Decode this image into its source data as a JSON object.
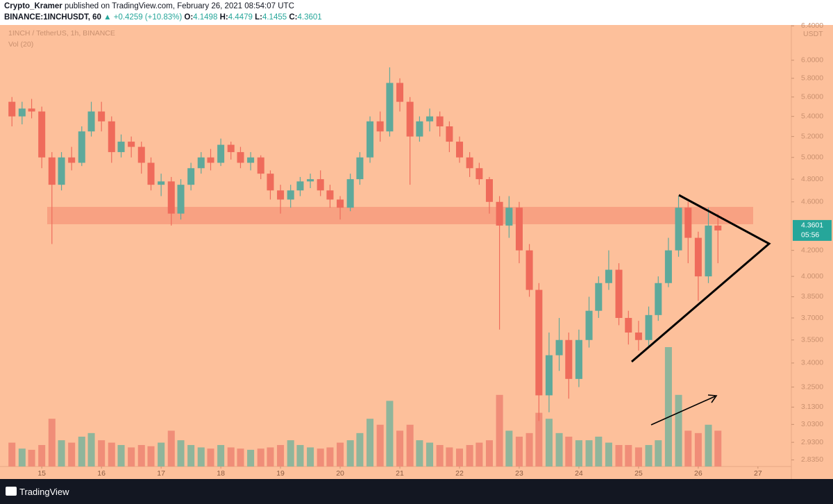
{
  "header": {
    "author": "Crypto_Kramer",
    "published": "published on TradingView.com, February 26, 2021 08:54:07 UTC",
    "symbol": "BINANCE:1INCHUSDT, 60",
    "change": "▲ +0.4259 (+10.83%)",
    "ohlc": [
      {
        "label": "O:",
        "value": "4.1498"
      },
      {
        "label": "H:",
        "value": "4.4479"
      },
      {
        "label": "L:",
        "value": "4.1455"
      },
      {
        "label": "C:",
        "value": "4.3601"
      }
    ]
  },
  "chart_data": {
    "type": "candlestick",
    "title": "1INCH / TetherUS, 1h, BINANCE",
    "indicator": "Vol (20)",
    "x": [
      14.5,
      14.67,
      14.83,
      15,
      15.17,
      15.33,
      15.5,
      15.67,
      15.83,
      16,
      16.17,
      16.33,
      16.5,
      16.67,
      16.83,
      17,
      17.17,
      17.33,
      17.5,
      17.67,
      17.83,
      18,
      18.17,
      18.33,
      18.5,
      18.67,
      18.83,
      19,
      19.17,
      19.33,
      19.5,
      19.67,
      19.83,
      20,
      20.17,
      20.33,
      20.5,
      20.67,
      20.83,
      21,
      21.17,
      21.33,
      21.5,
      21.67,
      21.83,
      22,
      22.17,
      22.33,
      22.5,
      22.67,
      22.83,
      23,
      23.17,
      23.33,
      23.5,
      23.67,
      23.83,
      24,
      24.17,
      24.33,
      24.5,
      24.67,
      24.83,
      25,
      25.17,
      25.33,
      25.5,
      25.67,
      25.83,
      26,
      26.17,
      26.33
    ],
    "open": [
      5.55,
      5.4,
      5.48,
      5.45,
      5.0,
      4.75,
      5.0,
      4.95,
      5.25,
      5.45,
      5.35,
      5.05,
      5.15,
      5.1,
      4.95,
      4.75,
      4.78,
      4.5,
      4.75,
      4.9,
      5.0,
      4.95,
      5.12,
      5.05,
      4.95,
      5.0,
      4.85,
      4.7,
      4.62,
      4.7,
      4.78,
      4.8,
      4.7,
      4.62,
      4.55,
      4.8,
      5.0,
      5.35,
      5.25,
      5.75,
      5.55,
      5.2,
      5.35,
      5.4,
      5.3,
      5.15,
      5.0,
      4.9,
      4.8,
      4.6,
      4.4,
      4.55,
      4.2,
      3.9,
      3.2,
      3.45,
      3.55,
      3.3,
      3.55,
      3.75,
      3.95,
      4.05,
      3.7,
      3.6,
      3.55,
      3.72,
      3.95,
      4.2,
      4.55,
      4.3,
      4.0,
      4.4
    ],
    "high": [
      5.6,
      5.55,
      5.58,
      5.5,
      5.05,
      5.05,
      5.1,
      5.3,
      5.55,
      5.55,
      5.4,
      5.22,
      5.2,
      5.15,
      5.0,
      4.85,
      4.82,
      4.8,
      4.95,
      5.05,
      5.08,
      5.18,
      5.15,
      5.1,
      5.05,
      5.02,
      4.88,
      4.75,
      4.75,
      4.82,
      4.85,
      4.88,
      4.75,
      4.65,
      4.85,
      5.05,
      5.4,
      5.45,
      5.92,
      5.8,
      5.6,
      5.4,
      5.48,
      5.45,
      5.35,
      5.2,
      5.05,
      4.95,
      4.82,
      4.65,
      4.65,
      4.6,
      4.25,
      3.95,
      3.6,
      3.7,
      3.6,
      3.62,
      3.85,
      4.0,
      4.2,
      4.1,
      3.75,
      3.68,
      3.78,
      4.0,
      4.3,
      4.65,
      4.6,
      4.35,
      4.55,
      4.5
    ],
    "low": [
      5.3,
      5.32,
      5.38,
      4.9,
      4.25,
      4.7,
      4.88,
      4.92,
      5.2,
      5.25,
      4.95,
      5.0,
      5.0,
      4.85,
      4.7,
      4.65,
      4.4,
      4.45,
      4.7,
      4.85,
      4.88,
      4.92,
      4.98,
      4.9,
      4.88,
      4.8,
      4.62,
      4.5,
      4.55,
      4.65,
      4.72,
      4.65,
      4.55,
      4.45,
      4.52,
      4.75,
      4.95,
      5.15,
      5.2,
      5.45,
      4.75,
      5.15,
      5.25,
      5.2,
      5.05,
      4.95,
      4.82,
      4.75,
      4.5,
      3.62,
      4.3,
      4.1,
      3.85,
      3.05,
      3.1,
      3.35,
      3.18,
      3.25,
      3.5,
      3.7,
      3.9,
      3.65,
      3.52,
      3.48,
      3.5,
      3.68,
      3.92,
      4.15,
      4.1,
      3.82,
      3.95,
      4.1
    ],
    "close": [
      5.4,
      5.48,
      5.45,
      5.0,
      4.75,
      5.0,
      4.95,
      5.25,
      5.45,
      5.35,
      5.05,
      5.15,
      5.1,
      4.95,
      4.75,
      4.78,
      4.5,
      4.75,
      4.9,
      5.0,
      4.95,
      5.12,
      5.05,
      4.95,
      5.0,
      4.85,
      4.7,
      4.62,
      4.7,
      4.78,
      4.8,
      4.7,
      4.62,
      4.55,
      4.8,
      5.0,
      5.35,
      5.25,
      5.75,
      5.55,
      5.2,
      5.35,
      5.4,
      5.3,
      5.15,
      5.0,
      4.9,
      4.8,
      4.6,
      4.4,
      4.55,
      4.2,
      3.9,
      3.2,
      3.45,
      3.55,
      3.3,
      3.55,
      3.75,
      3.95,
      4.05,
      3.7,
      3.6,
      3.55,
      3.72,
      3.95,
      4.2,
      4.55,
      4.3,
      4.0,
      4.4,
      4.36
    ],
    "volume": [
      20,
      15,
      14,
      18,
      40,
      22,
      20,
      25,
      28,
      22,
      20,
      18,
      16,
      18,
      17,
      20,
      30,
      22,
      18,
      16,
      15,
      18,
      16,
      15,
      14,
      15,
      16,
      18,
      22,
      18,
      16,
      15,
      16,
      20,
      22,
      28,
      40,
      35,
      55,
      30,
      35,
      22,
      20,
      18,
      16,
      15,
      18,
      20,
      22,
      60,
      30,
      25,
      28,
      45,
      40,
      28,
      25,
      22,
      22,
      25,
      20,
      18,
      18,
      16,
      18,
      22,
      100,
      60,
      30,
      28,
      35,
      30
    ],
    "up_color": "#5ea99b",
    "down_color": "#ef6b5b",
    "volume_up_color": "#8fb59b",
    "volume_down_color": "#f08d78",
    "xlim": [
      14.3,
      27.56
    ],
    "xticks": [
      15,
      16,
      17,
      18,
      19,
      20,
      21,
      22,
      23,
      24,
      25,
      26,
      27
    ],
    "ylim": [
      2.8,
      6.41
    ],
    "log": true,
    "grid": false,
    "price_unit": "USDT",
    "yticks": [
      {
        "value": 2.835,
        "label": "2.8350"
      },
      {
        "value": 2.93,
        "label": "2.9300"
      },
      {
        "value": 3.03,
        "label": "3.0300"
      },
      {
        "value": 3.13,
        "label": "3.1300"
      },
      {
        "value": 3.25,
        "label": "3.2500"
      },
      {
        "value": 3.4,
        "label": "3.4000"
      },
      {
        "value": 3.55,
        "label": "3.5500"
      },
      {
        "value": 3.7,
        "label": "3.7000"
      },
      {
        "value": 3.85,
        "label": "3.8500"
      },
      {
        "value": 4,
        "label": "4.0000"
      },
      {
        "value": 4.2,
        "label": "4.2000"
      },
      {
        "value": 4.6,
        "label": "4.6000"
      },
      {
        "value": 4.8,
        "label": "4.8000"
      },
      {
        "value": 5,
        "label": "5.0000"
      },
      {
        "value": 5.2,
        "label": "5.2000"
      },
      {
        "value": 5.4,
        "label": "5.4000"
      },
      {
        "value": 5.6,
        "label": "5.6000"
      },
      {
        "value": 5.8,
        "label": "5.8000"
      },
      {
        "value": 6,
        "label": "6.0000"
      },
      {
        "value": 6.4,
        "label": "6.4000"
      }
    ],
    "volume_ylim": [
      0,
      100
    ],
    "last_price": 4.3601,
    "countdown": "05:56"
  },
  "footer": {
    "brand": "TradingView"
  }
}
